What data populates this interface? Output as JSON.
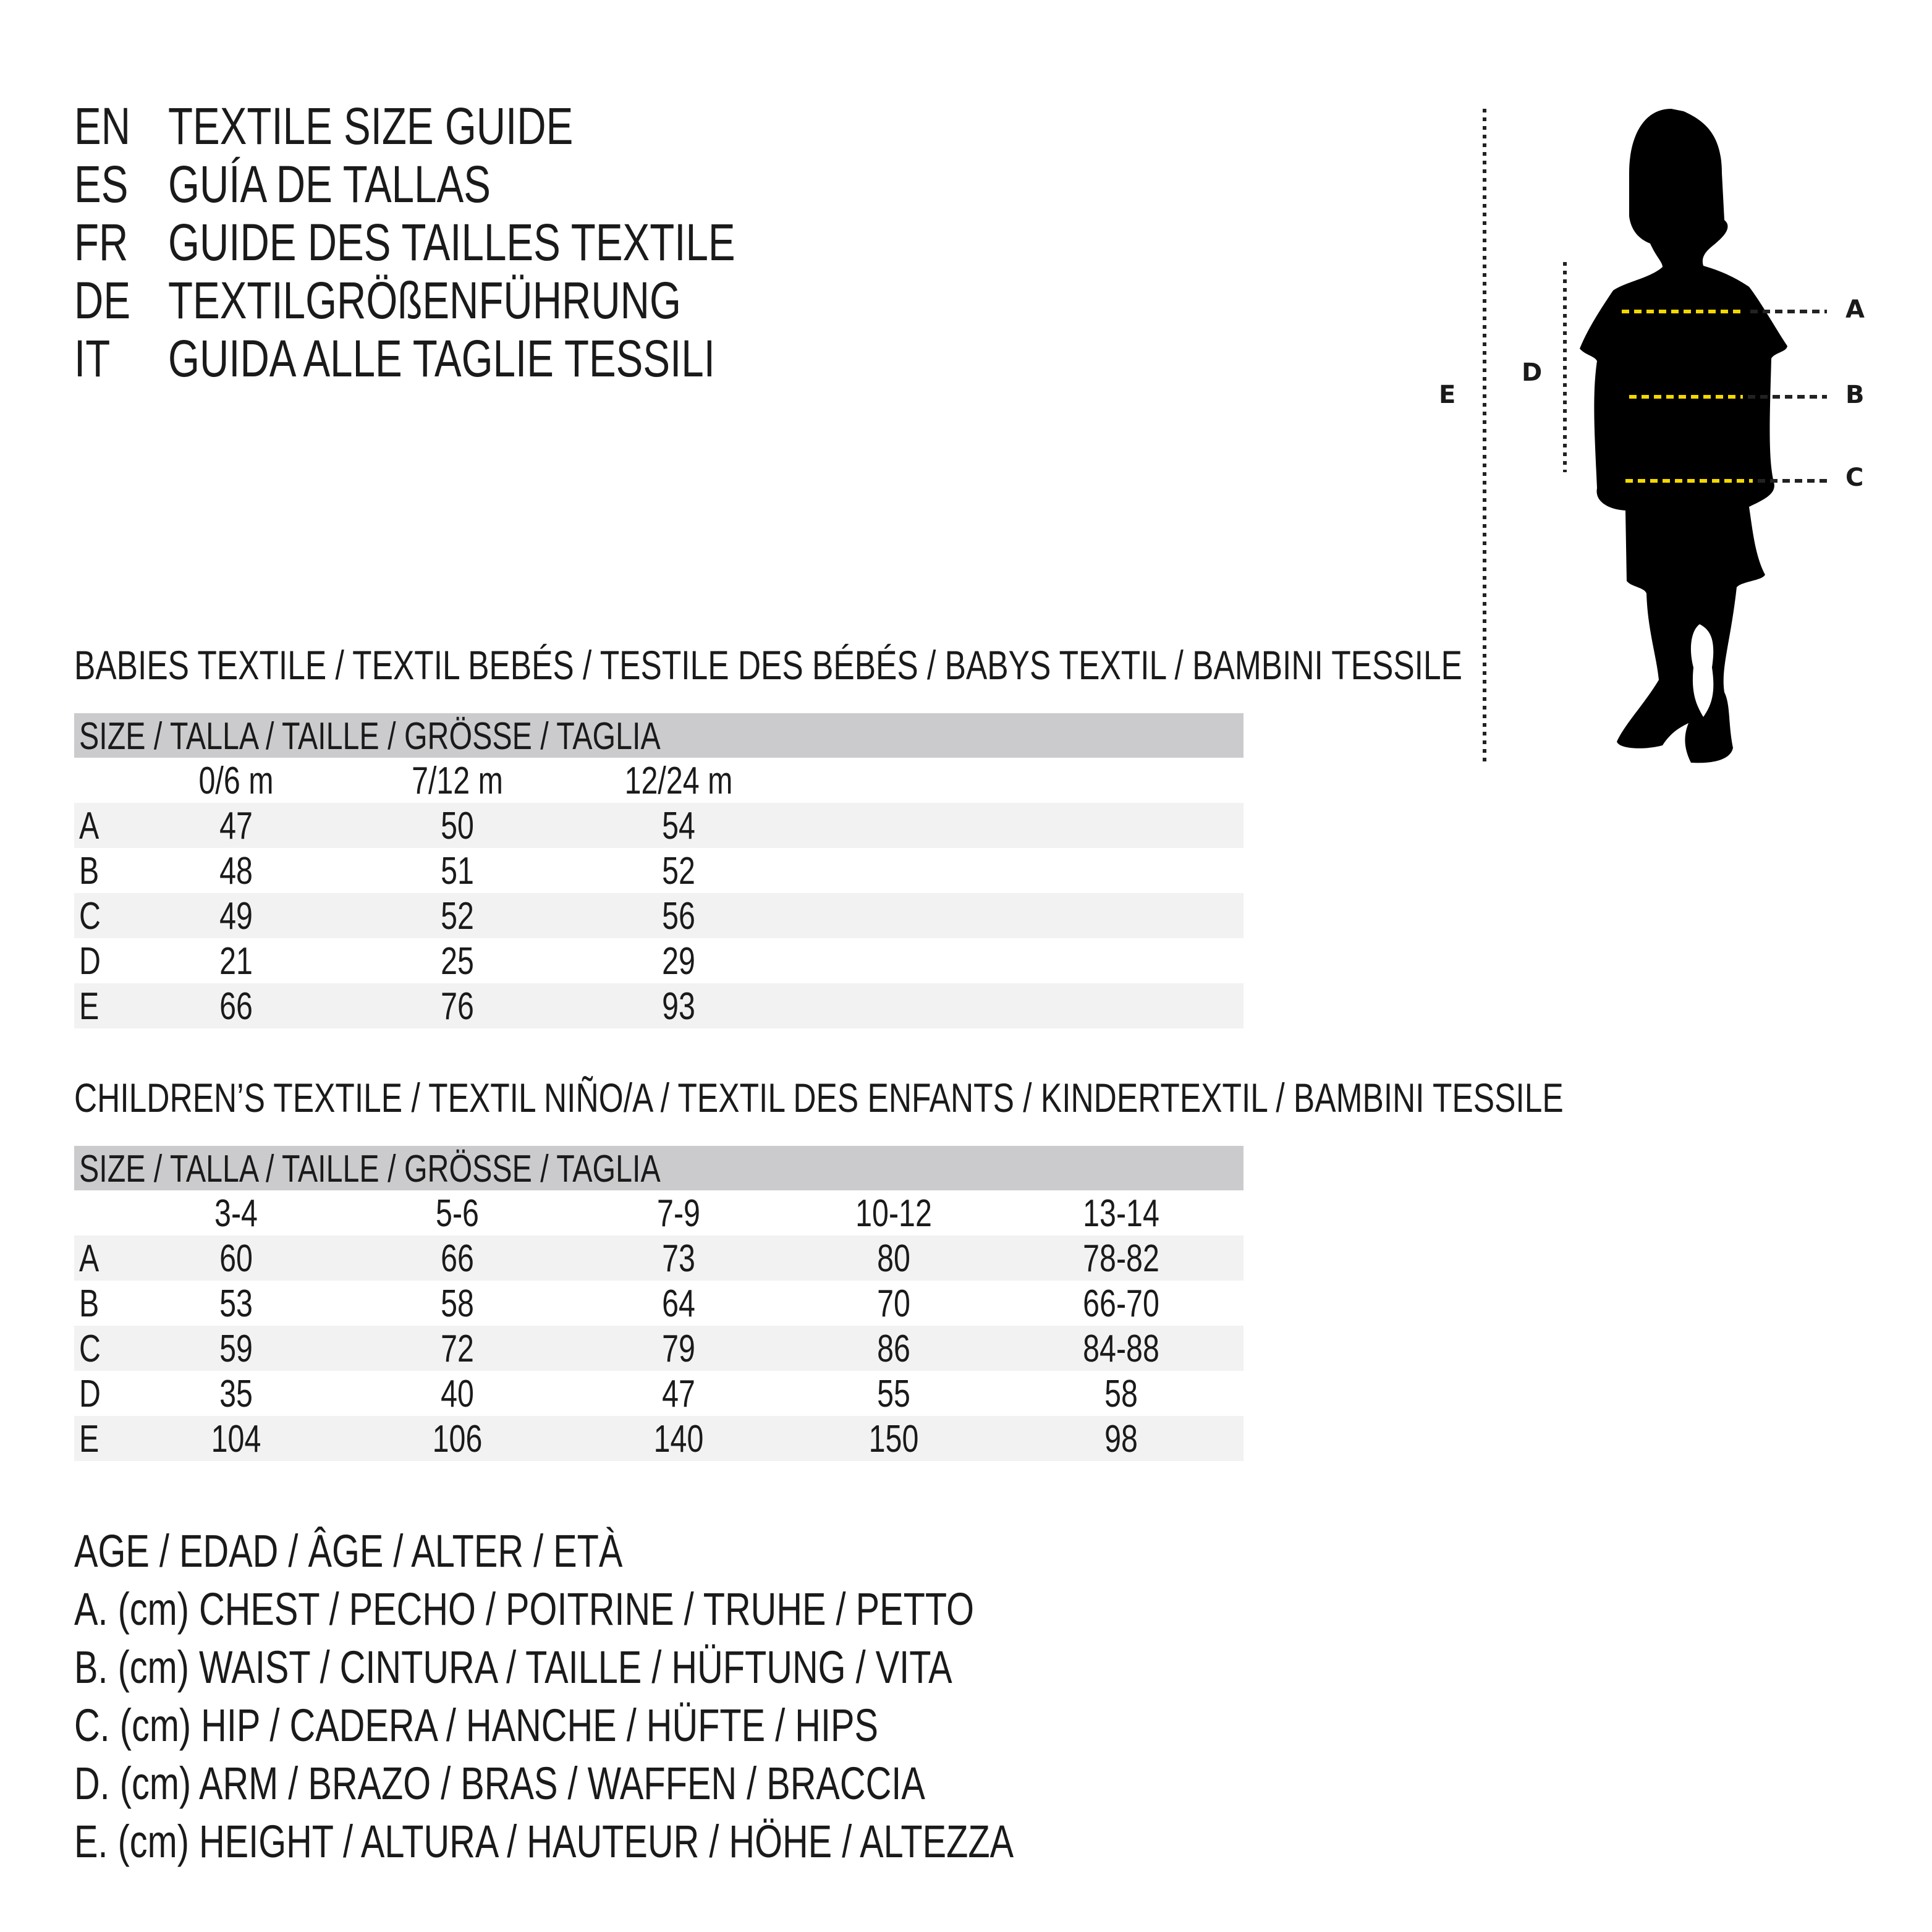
{
  "header": {
    "lines": [
      {
        "code": "EN",
        "text": "TEXTILE SIZE GUIDE"
      },
      {
        "code": "ES",
        "text": "GUÍA DE TALLAS"
      },
      {
        "code": "FR",
        "text": "GUIDE DES TAILLES TEXTILE"
      },
      {
        "code": "DE",
        "text": "TEXTILGRÖßENFÜHRUNG"
      },
      {
        "code": "IT",
        "text": "GUIDA ALLE TAGLIE TESSILI"
      }
    ]
  },
  "figure": {
    "labels": {
      "A": "A",
      "B": "B",
      "C": "C",
      "D": "D",
      "E": "E"
    },
    "colors": {
      "silhouette": "#000000",
      "measure_line": "#f5d800",
      "guide_line": "#222222"
    }
  },
  "babies": {
    "title": "BABIES TEXTILE / TEXTIL BEBÉS / TESTILE DES BÉBÉS / BABYS TEXTIL / BAMBINI TESSILE",
    "size_header": "SIZE / TALLA / TAILLE / GRÖSSE / TAGLIA",
    "columns": [
      "0/6 m",
      "7/12 m",
      "12/24 m"
    ],
    "rows": [
      {
        "label": "A",
        "values": [
          "47",
          "50",
          "54"
        ]
      },
      {
        "label": "B",
        "values": [
          "48",
          "51",
          "52"
        ]
      },
      {
        "label": "C",
        "values": [
          "49",
          "52",
          "56"
        ]
      },
      {
        "label": "D",
        "values": [
          "21",
          "25",
          "29"
        ]
      },
      {
        "label": "E",
        "values": [
          "66",
          "76",
          "93"
        ]
      }
    ]
  },
  "children": {
    "title": "CHILDREN’S TEXTILE / TEXTIL NIÑO/A / TEXTIL DES ENFANTS / KINDERTEXTIL / BAMBINI TESSILE",
    "size_header": "SIZE / TALLA / TAILLE / GRÖSSE / TAGLIA",
    "columns": [
      "3-4",
      "5-6",
      "7-9",
      "10-12",
      "13-14"
    ],
    "rows": [
      {
        "label": "A",
        "values": [
          "60",
          "66",
          "73",
          "80",
          "78-82"
        ]
      },
      {
        "label": "B",
        "values": [
          "53",
          "58",
          "64",
          "70",
          "66-70"
        ]
      },
      {
        "label": "C",
        "values": [
          "59",
          "72",
          "79",
          "86",
          "84-88"
        ]
      },
      {
        "label": "D",
        "values": [
          "35",
          "40",
          "47",
          "55",
          "58"
        ]
      },
      {
        "label": "E",
        "values": [
          "104",
          "106",
          "140",
          "150",
          "98"
        ]
      }
    ]
  },
  "legend": [
    "AGE / EDAD / ÂGE / ALTER / ETÀ",
    "A. (cm) CHEST / PECHO / POITRINE / TRUHE / PETTO",
    "B. (cm) WAIST / CINTURA / TAILLE / HÜFTUNG / VITA",
    "C. (cm) HIP / CADERA / HANCHE / HÜFTE / HIPS",
    "D. (cm) ARM / BRAZO / BRAS / WAFFEN / BRACCIA",
    "E. (cm) HEIGHT / ALTURA / HAUTEUR / HÖHE / ALTEZZA"
  ]
}
